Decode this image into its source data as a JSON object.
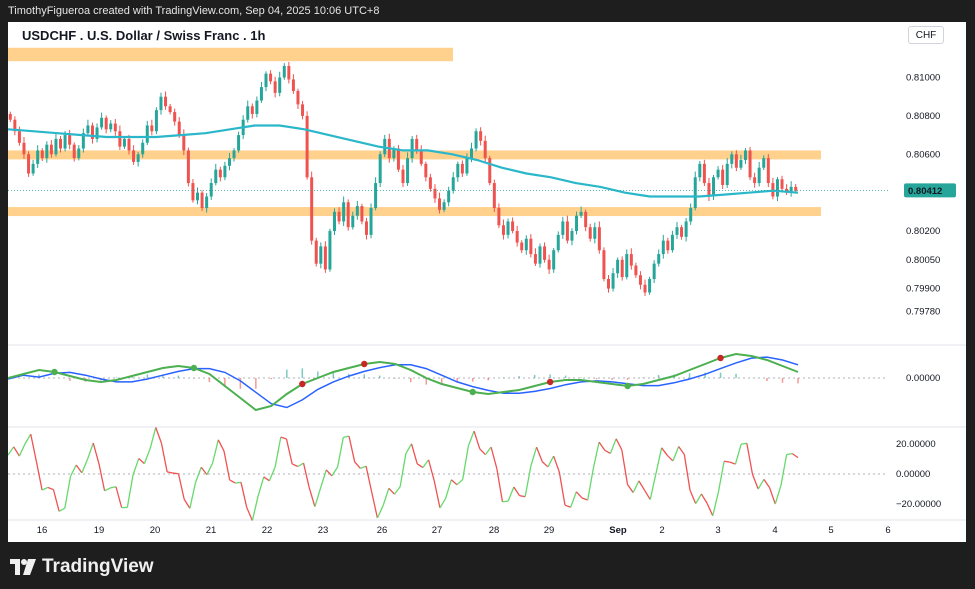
{
  "watermark": "TimothyFigueroa created with TradingView.com, Sep 04, 2025 10:06 UTC+8",
  "brand": "TradingView",
  "colors": {
    "up": "#26a69a",
    "down": "#ef5350",
    "ema": "#2ab7ca",
    "zone": "#ffcc80",
    "signal_green": "#4caf50",
    "signal_red": "#c62828",
    "macd_blue": "#2962ff"
  },
  "chart_data": [
    {
      "type": "candlestick",
      "title": "USDCHF . U.S. Dollar / Swiss Franc . 1h",
      "currency": "CHF",
      "y_ticks": [
        "0.81000",
        "0.80800",
        "0.80600",
        "0.80200",
        "0.80050",
        "0.79900",
        "0.79780"
      ],
      "last_price": "0.80412",
      "x_ticks": [
        "16",
        "19",
        "20",
        "21",
        "22",
        "23",
        "26",
        "27",
        "28",
        "29",
        "Sep",
        "2",
        "3",
        "4",
        "5",
        "6"
      ],
      "ohlc_close": [
        0.8078,
        0.8072,
        0.8066,
        0.806,
        0.805,
        0.8055,
        0.8062,
        0.8058,
        0.8065,
        0.806,
        0.8068,
        0.8063,
        0.807,
        0.8065,
        0.8058,
        0.8063,
        0.8071,
        0.8075,
        0.8068,
        0.8074,
        0.8079,
        0.8073,
        0.8076,
        0.8072,
        0.8064,
        0.8068,
        0.8062,
        0.8056,
        0.806,
        0.8066,
        0.8075,
        0.8072,
        0.8083,
        0.809,
        0.8085,
        0.8082,
        0.8077,
        0.807,
        0.8062,
        0.8045,
        0.8036,
        0.804,
        0.8032,
        0.8038,
        0.8045,
        0.8052,
        0.8048,
        0.8054,
        0.8058,
        0.8062,
        0.807,
        0.8078,
        0.8085,
        0.8081,
        0.8088,
        0.8095,
        0.8102,
        0.8098,
        0.8092,
        0.81,
        0.8106,
        0.8099,
        0.8093,
        0.8086,
        0.808,
        0.8048,
        0.8015,
        0.8003,
        0.8012,
        0.8,
        0.802,
        0.803,
        0.8025,
        0.8035,
        0.8022,
        0.8028,
        0.8033,
        0.8025,
        0.8018,
        0.8032,
        0.8045,
        0.806,
        0.8068,
        0.8058,
        0.8063,
        0.8052,
        0.8045,
        0.8058,
        0.8068,
        0.8062,
        0.8055,
        0.8048,
        0.8042,
        0.8037,
        0.8031,
        0.8035,
        0.8041,
        0.8048,
        0.8055,
        0.805,
        0.8058,
        0.8063,
        0.8072,
        0.8067,
        0.8058,
        0.8045,
        0.8032,
        0.8023,
        0.8018,
        0.8025,
        0.802,
        0.8014,
        0.801,
        0.8016,
        0.8008,
        0.8003,
        0.8012,
        0.8005,
        0.8,
        0.801,
        0.8018,
        0.8025,
        0.8015,
        0.802,
        0.8028,
        0.803,
        0.8022,
        0.8016,
        0.8022,
        0.801,
        0.7995,
        0.799,
        0.7998,
        0.8005,
        0.7996,
        0.8008,
        0.8002,
        0.7997,
        0.7992,
        0.7988,
        0.7995,
        0.8003,
        0.8008,
        0.8015,
        0.801,
        0.8018,
        0.8022,
        0.8017,
        0.8025,
        0.8032,
        0.8048,
        0.8055,
        0.8045,
        0.8038,
        0.8048,
        0.8052,
        0.8044,
        0.8055,
        0.806,
        0.8053,
        0.8057,
        0.8062,
        0.8048,
        0.8045,
        0.8053,
        0.8058,
        0.8045,
        0.8038,
        0.8047,
        0.8042,
        0.804,
        0.8043,
        0.8041
      ],
      "ema_levels": [
        0.8073,
        0.8072,
        0.8071,
        0.807,
        0.8069,
        0.8069,
        0.8069,
        0.807,
        0.8071,
        0.8073,
        0.8075,
        0.8075,
        0.8073,
        0.807,
        0.8067,
        0.8064,
        0.8062,
        0.8062,
        0.806,
        0.8057,
        0.8053,
        0.805,
        0.8048,
        0.8045,
        0.8043,
        0.804,
        0.8038,
        0.8038,
        0.8038,
        0.8039,
        0.804,
        0.8041,
        0.804
      ],
      "zones": [
        {
          "from": 0.81085,
          "to": 0.81155,
          "end": "22"
        },
        {
          "from": 0.80575,
          "to": 0.8062,
          "end": "5"
        },
        {
          "from": 0.80293,
          "to": 0.80325,
          "end": "5"
        }
      ],
      "indicator_panes": [
        {
          "name": "",
          "y_ticks": [
            "0.00000"
          ]
        },
        {
          "name": "",
          "y_ticks": [
            "20.00000",
            "0.00000",
            "−20.00000"
          ]
        }
      ]
    }
  ]
}
